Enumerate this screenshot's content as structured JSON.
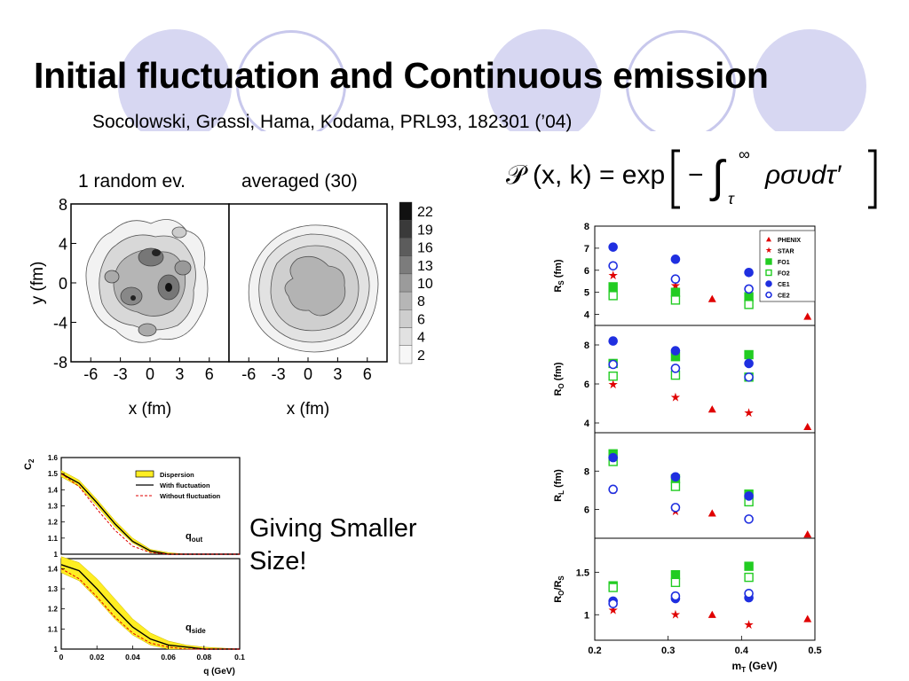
{
  "slide": {
    "title": "Initial fluctuation and Continuous emission",
    "citation": "Socolowski, Grassi, Hama, Kodama, PRL93, 182301 (’04)",
    "caption_left": "1 random ev.",
    "caption_right": "averaged (30)",
    "note_line1": "Giving Smaller",
    "note_line2": "Size!",
    "formula": {
      "lhs": "𝒫 (x, k) = exp",
      "minus": "−",
      "upper": "∞",
      "lower": "τ",
      "integrand": "ρσυdτ′"
    },
    "accent_color": "#d4d4f0",
    "ring_color": "#c6c6ea"
  },
  "chart_data": [
    {
      "type": "heatmap",
      "panels": [
        "1 random ev.",
        "averaged (30)"
      ],
      "xlabel": "x (fm)",
      "ylabel": "y (fm)",
      "xticks": [
        "-6",
        "-3",
        "0",
        "3",
        "6"
      ],
      "yticks": [
        "8",
        "4",
        "0",
        "-4",
        "-8"
      ],
      "xlim": [
        -8,
        8
      ],
      "ylim": [
        -8,
        8
      ],
      "colorbar": {
        "levels": [
          "22",
          "19",
          "16",
          "13",
          "10",
          "8",
          "6",
          "4",
          "2"
        ],
        "colors": [
          "#111111",
          "#3a3a3a",
          "#5c5c5c",
          "#7c7c7c",
          "#9b9b9b",
          "#b6b6b6",
          "#cecece",
          "#e2e2e2",
          "#f7f7f7"
        ]
      }
    },
    {
      "type": "line",
      "panels": [
        {
          "label": "q_out",
          "label_main": "q",
          "label_sub": "out",
          "ylim": [
            1.0,
            1.6
          ],
          "yticks": [
            "1.6",
            "1.5",
            "1.4",
            "1.3",
            "1.2",
            "1.1",
            "1"
          ],
          "series": [
            {
              "name": "With fluctuation",
              "x": [
                0,
                0.01,
                0.02,
                0.03,
                0.04,
                0.05,
                0.06,
                0.07,
                0.08,
                0.1
              ],
              "y": [
                1.5,
                1.44,
                1.32,
                1.19,
                1.08,
                1.02,
                1.0,
                1.0,
                1.0,
                1.0
              ]
            },
            {
              "name": "Without fluctuation",
              "x": [
                0,
                0.01,
                0.02,
                0.03,
                0.04,
                0.05,
                0.06,
                0.07,
                0.08,
                0.1
              ],
              "y": [
                1.5,
                1.42,
                1.28,
                1.15,
                1.05,
                1.01,
                1.0,
                1.0,
                1.0,
                1.0
              ]
            }
          ],
          "band": {
            "name": "Dispersion",
            "x": [
              0,
              0.01,
              0.02,
              0.03,
              0.04,
              0.05,
              0.06,
              0.07,
              0.08,
              0.1
            ],
            "lo": [
              1.48,
              1.42,
              1.3,
              1.17,
              1.07,
              1.01,
              1.0,
              1.0,
              1.0,
              1.0
            ],
            "hi": [
              1.52,
              1.46,
              1.34,
              1.21,
              1.1,
              1.03,
              1.01,
              1.0,
              1.0,
              1.0
            ]
          }
        },
        {
          "label": "q_side",
          "label_main": "q",
          "label_sub": "side",
          "ylim": [
            1.0,
            1.45
          ],
          "yticks": [
            "1.4",
            "1.3",
            "1.2",
            "1.1",
            "1"
          ],
          "series": [
            {
              "name": "With fluctuation",
              "x": [
                0,
                0.01,
                0.02,
                0.03,
                0.04,
                0.05,
                0.06,
                0.07,
                0.08,
                0.1
              ],
              "y": [
                1.42,
                1.39,
                1.3,
                1.2,
                1.11,
                1.05,
                1.02,
                1.01,
                1.0,
                1.0
              ]
            },
            {
              "name": "Without fluctuation",
              "x": [
                0,
                0.01,
                0.02,
                0.03,
                0.04,
                0.05,
                0.06,
                0.07,
                0.08,
                0.1
              ],
              "y": [
                1.4,
                1.35,
                1.26,
                1.16,
                1.08,
                1.03,
                1.01,
                1.0,
                1.0,
                1.0
              ]
            }
          ],
          "band": {
            "name": "Dispersion",
            "x": [
              0,
              0.01,
              0.02,
              0.03,
              0.04,
              0.05,
              0.06,
              0.07,
              0.08,
              0.1
            ],
            "lo": [
              1.38,
              1.34,
              1.25,
              1.15,
              1.07,
              1.02,
              1.0,
              1.0,
              1.0,
              1.0
            ],
            "hi": [
              1.46,
              1.43,
              1.35,
              1.25,
              1.15,
              1.08,
              1.04,
              1.02,
              1.01,
              1.0
            ]
          }
        }
      ],
      "xticks": [
        "0",
        "0.02",
        "0.04",
        "0.06",
        "0.08",
        "0.1"
      ],
      "xlabel": "q (GeV)",
      "ylabel": "C",
      "ylabel_sub": "2",
      "xlim": [
        0,
        0.1
      ],
      "legend": [
        "Dispersion",
        "With fluctuation",
        "Without fluctuation"
      ],
      "colors": {
        "band": "#ffee22",
        "with": "#000000",
        "without": "#e00000"
      }
    },
    {
      "type": "scatter",
      "xlim": [
        0.2,
        0.5
      ],
      "xticks": [
        "0.2",
        "0.3",
        "0.4",
        "0.5"
      ],
      "xlabel_main": "m",
      "xlabel_sub": "T",
      "xlabel_tail": " (GeV)",
      "legend": [
        "PHENIX",
        "STAR",
        "FO1",
        "FO2",
        "CE1",
        "CE2"
      ],
      "panels": [
        {
          "ylabel_main": "R",
          "ylabel_sub": "S",
          "ylabel_tail": " (fm)",
          "ylim": [
            3.5,
            8
          ],
          "yticks": [
            4,
            5,
            6,
            7,
            8
          ],
          "series": [
            {
              "name": "PHENIX",
              "x": [
                0.36,
                0.49
              ],
              "y": [
                4.7,
                3.9
              ]
            },
            {
              "name": "STAR",
              "x": [
                0.225,
                0.31,
                0.41
              ],
              "y": [
                5.75,
                5.3,
                5.1
              ]
            },
            {
              "name": "FO1",
              "x": [
                0.225,
                0.31,
                0.41
              ],
              "y": [
                5.25,
                5.0,
                4.8
              ]
            },
            {
              "name": "FO2",
              "x": [
                0.225,
                0.31,
                0.41
              ],
              "y": [
                4.85,
                4.65,
                4.45
              ]
            },
            {
              "name": "CE1",
              "x": [
                0.225,
                0.31,
                0.41
              ],
              "y": [
                7.05,
                6.5,
                5.9
              ]
            },
            {
              "name": "CE2",
              "x": [
                0.225,
                0.31,
                0.41
              ],
              "y": [
                6.2,
                5.6,
                5.15
              ]
            }
          ]
        },
        {
          "ylabel_main": "R",
          "ylabel_sub": "O",
          "ylabel_tail": " (fm)",
          "ylim": [
            3.5,
            9
          ],
          "yticks": [
            4,
            6,
            8
          ],
          "series": [
            {
              "name": "PHENIX",
              "x": [
                0.36,
                0.49
              ],
              "y": [
                4.7,
                3.8
              ]
            },
            {
              "name": "STAR",
              "x": [
                0.225,
                0.31,
                0.41
              ],
              "y": [
                5.95,
                5.3,
                4.5
              ]
            },
            {
              "name": "FO1",
              "x": [
                0.225,
                0.31,
                0.41
              ],
              "y": [
                7.05,
                7.4,
                7.5
              ]
            },
            {
              "name": "FO2",
              "x": [
                0.225,
                0.31,
                0.41
              ],
              "y": [
                6.4,
                6.45,
                6.35
              ]
            },
            {
              "name": "CE1",
              "x": [
                0.225,
                0.31,
                0.41
              ],
              "y": [
                8.2,
                7.7,
                7.05
              ]
            },
            {
              "name": "CE2",
              "x": [
                0.225,
                0.31,
                0.41
              ],
              "y": [
                7.0,
                6.8,
                6.35
              ]
            }
          ]
        },
        {
          "ylabel_main": "R",
          "ylabel_sub": "L",
          "ylabel_tail": " (fm)",
          "ylim": [
            4.5,
            10
          ],
          "yticks": [
            6,
            8
          ],
          "series": [
            {
              "name": "PHENIX",
              "x": [
                0.36,
                0.49
              ],
              "y": [
                5.8,
                4.7
              ]
            },
            {
              "name": "STAR",
              "x": [
                0.225,
                0.31,
                0.41
              ],
              "y": [
                7.0,
                5.9,
                5.5
              ]
            },
            {
              "name": "FO1",
              "x": [
                0.225,
                0.31,
                0.41
              ],
              "y": [
                8.9,
                7.6,
                6.8
              ]
            },
            {
              "name": "FO2",
              "x": [
                0.225,
                0.31,
                0.41
              ],
              "y": [
                8.5,
                7.2,
                6.4
              ]
            },
            {
              "name": "CE1",
              "x": [
                0.225,
                0.31,
                0.41
              ],
              "y": [
                8.7,
                7.7,
                6.7
              ]
            },
            {
              "name": "CE2",
              "x": [
                0.225,
                0.31,
                0.41
              ],
              "y": [
                7.05,
                6.1,
                5.5
              ]
            }
          ]
        },
        {
          "ylabel_main": "R",
          "ylabel_sub": "O",
          "ylabel_tail": "/R",
          "ylabel_sub2": "S",
          "ylim": [
            0.7,
            1.9
          ],
          "yticks": [
            1,
            1.5
          ],
          "series": [
            {
              "name": "PHENIX",
              "x": [
                0.36,
                0.49
              ],
              "y": [
                1.0,
                0.95
              ]
            },
            {
              "name": "STAR",
              "x": [
                0.225,
                0.31,
                0.41
              ],
              "y": [
                1.05,
                1.0,
                0.88
              ]
            },
            {
              "name": "FO1",
              "x": [
                0.225,
                0.31,
                0.41
              ],
              "y": [
                1.34,
                1.47,
                1.57
              ]
            },
            {
              "name": "FO2",
              "x": [
                0.225,
                0.31,
                0.41
              ],
              "y": [
                1.32,
                1.38,
                1.44
              ]
            },
            {
              "name": "CE1",
              "x": [
                0.225,
                0.31,
                0.41
              ],
              "y": [
                1.16,
                1.19,
                1.2
              ]
            },
            {
              "name": "CE2",
              "x": [
                0.225,
                0.31,
                0.41
              ],
              "y": [
                1.13,
                1.22,
                1.25
              ]
            }
          ]
        }
      ]
    }
  ]
}
